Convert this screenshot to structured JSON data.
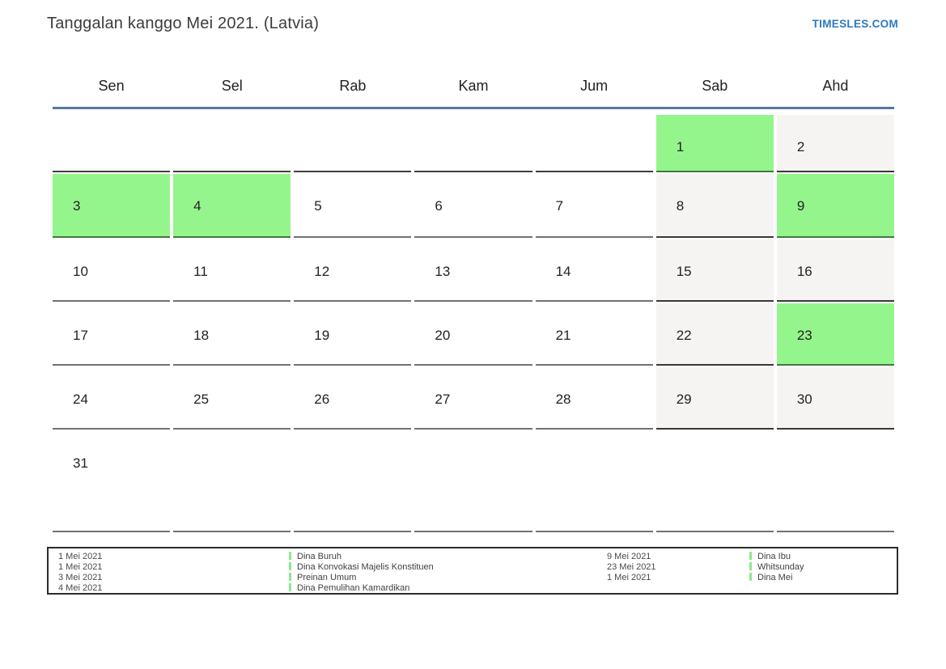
{
  "page": {
    "title": "Tanggalan kanggo Mei 2021. (Latvia)",
    "brand": "TIMESLES.COM"
  },
  "colors": {
    "brand_blue": "#2e78c2",
    "header_rule": "#57779f",
    "holiday_bg": "#95f58d",
    "holiday_border": "#3e7a3e",
    "weekend_bg": "#f5f4f3",
    "weekend_border": "#383838",
    "normal_border": "#727272",
    "legend_bar": "#8ce98c"
  },
  "calendar": {
    "month": "Mei 2021",
    "day_headers": [
      "Sen",
      "Sel",
      "Rab",
      "Kam",
      "Jum",
      "Sab",
      "Ahd"
    ],
    "weeks": [
      [
        {
          "day": "",
          "type": "empty"
        },
        {
          "day": "",
          "type": "empty"
        },
        {
          "day": "",
          "type": "empty"
        },
        {
          "day": "",
          "type": "empty"
        },
        {
          "day": "",
          "type": "empty"
        },
        {
          "day": "1",
          "type": "holiday"
        },
        {
          "day": "2",
          "type": "weekend"
        }
      ],
      [
        {
          "day": "3",
          "type": "holiday"
        },
        {
          "day": "4",
          "type": "holiday"
        },
        {
          "day": "5",
          "type": "normal"
        },
        {
          "day": "6",
          "type": "normal"
        },
        {
          "day": "7",
          "type": "normal"
        },
        {
          "day": "8",
          "type": "weekend"
        },
        {
          "day": "9",
          "type": "holiday"
        }
      ],
      [
        {
          "day": "10",
          "type": "normal"
        },
        {
          "day": "11",
          "type": "normal"
        },
        {
          "day": "12",
          "type": "normal"
        },
        {
          "day": "13",
          "type": "normal"
        },
        {
          "day": "14",
          "type": "normal"
        },
        {
          "day": "15",
          "type": "weekend"
        },
        {
          "day": "16",
          "type": "weekend"
        }
      ],
      [
        {
          "day": "17",
          "type": "normal"
        },
        {
          "day": "18",
          "type": "normal"
        },
        {
          "day": "19",
          "type": "normal"
        },
        {
          "day": "20",
          "type": "normal"
        },
        {
          "day": "21",
          "type": "normal"
        },
        {
          "day": "22",
          "type": "weekend"
        },
        {
          "day": "23",
          "type": "holiday"
        }
      ],
      [
        {
          "day": "24",
          "type": "normal"
        },
        {
          "day": "25",
          "type": "normal"
        },
        {
          "day": "26",
          "type": "normal"
        },
        {
          "day": "27",
          "type": "normal"
        },
        {
          "day": "28",
          "type": "normal"
        },
        {
          "day": "29",
          "type": "weekend"
        },
        {
          "day": "30",
          "type": "weekend"
        }
      ],
      [
        {
          "day": "31",
          "type": "normal"
        },
        {
          "day": "",
          "type": "empty"
        },
        {
          "day": "",
          "type": "empty"
        },
        {
          "day": "",
          "type": "empty"
        },
        {
          "day": "",
          "type": "empty"
        },
        {
          "day": "",
          "type": "empty"
        },
        {
          "day": "",
          "type": "empty"
        }
      ]
    ]
  },
  "legend": {
    "groups": [
      {
        "entries": [
          {
            "date": "1 Mei 2021",
            "event": "Dina Buruh"
          },
          {
            "date": "1 Mei 2021",
            "event": "Dina Konvokasi Majelis Konstituen"
          },
          {
            "date": "3 Mei 2021",
            "event": "Preinan Umum"
          },
          {
            "date": "4 Mei 2021",
            "event": "Dina Pemulihan Kamardikan"
          }
        ]
      },
      {
        "entries": [
          {
            "date": "9 Mei 2021",
            "event": "Dina Ibu"
          },
          {
            "date": "23 Mei 2021",
            "event": "Whitsunday"
          },
          {
            "date": "1 Mei 2021",
            "event": "Dina Mei"
          }
        ]
      }
    ]
  }
}
